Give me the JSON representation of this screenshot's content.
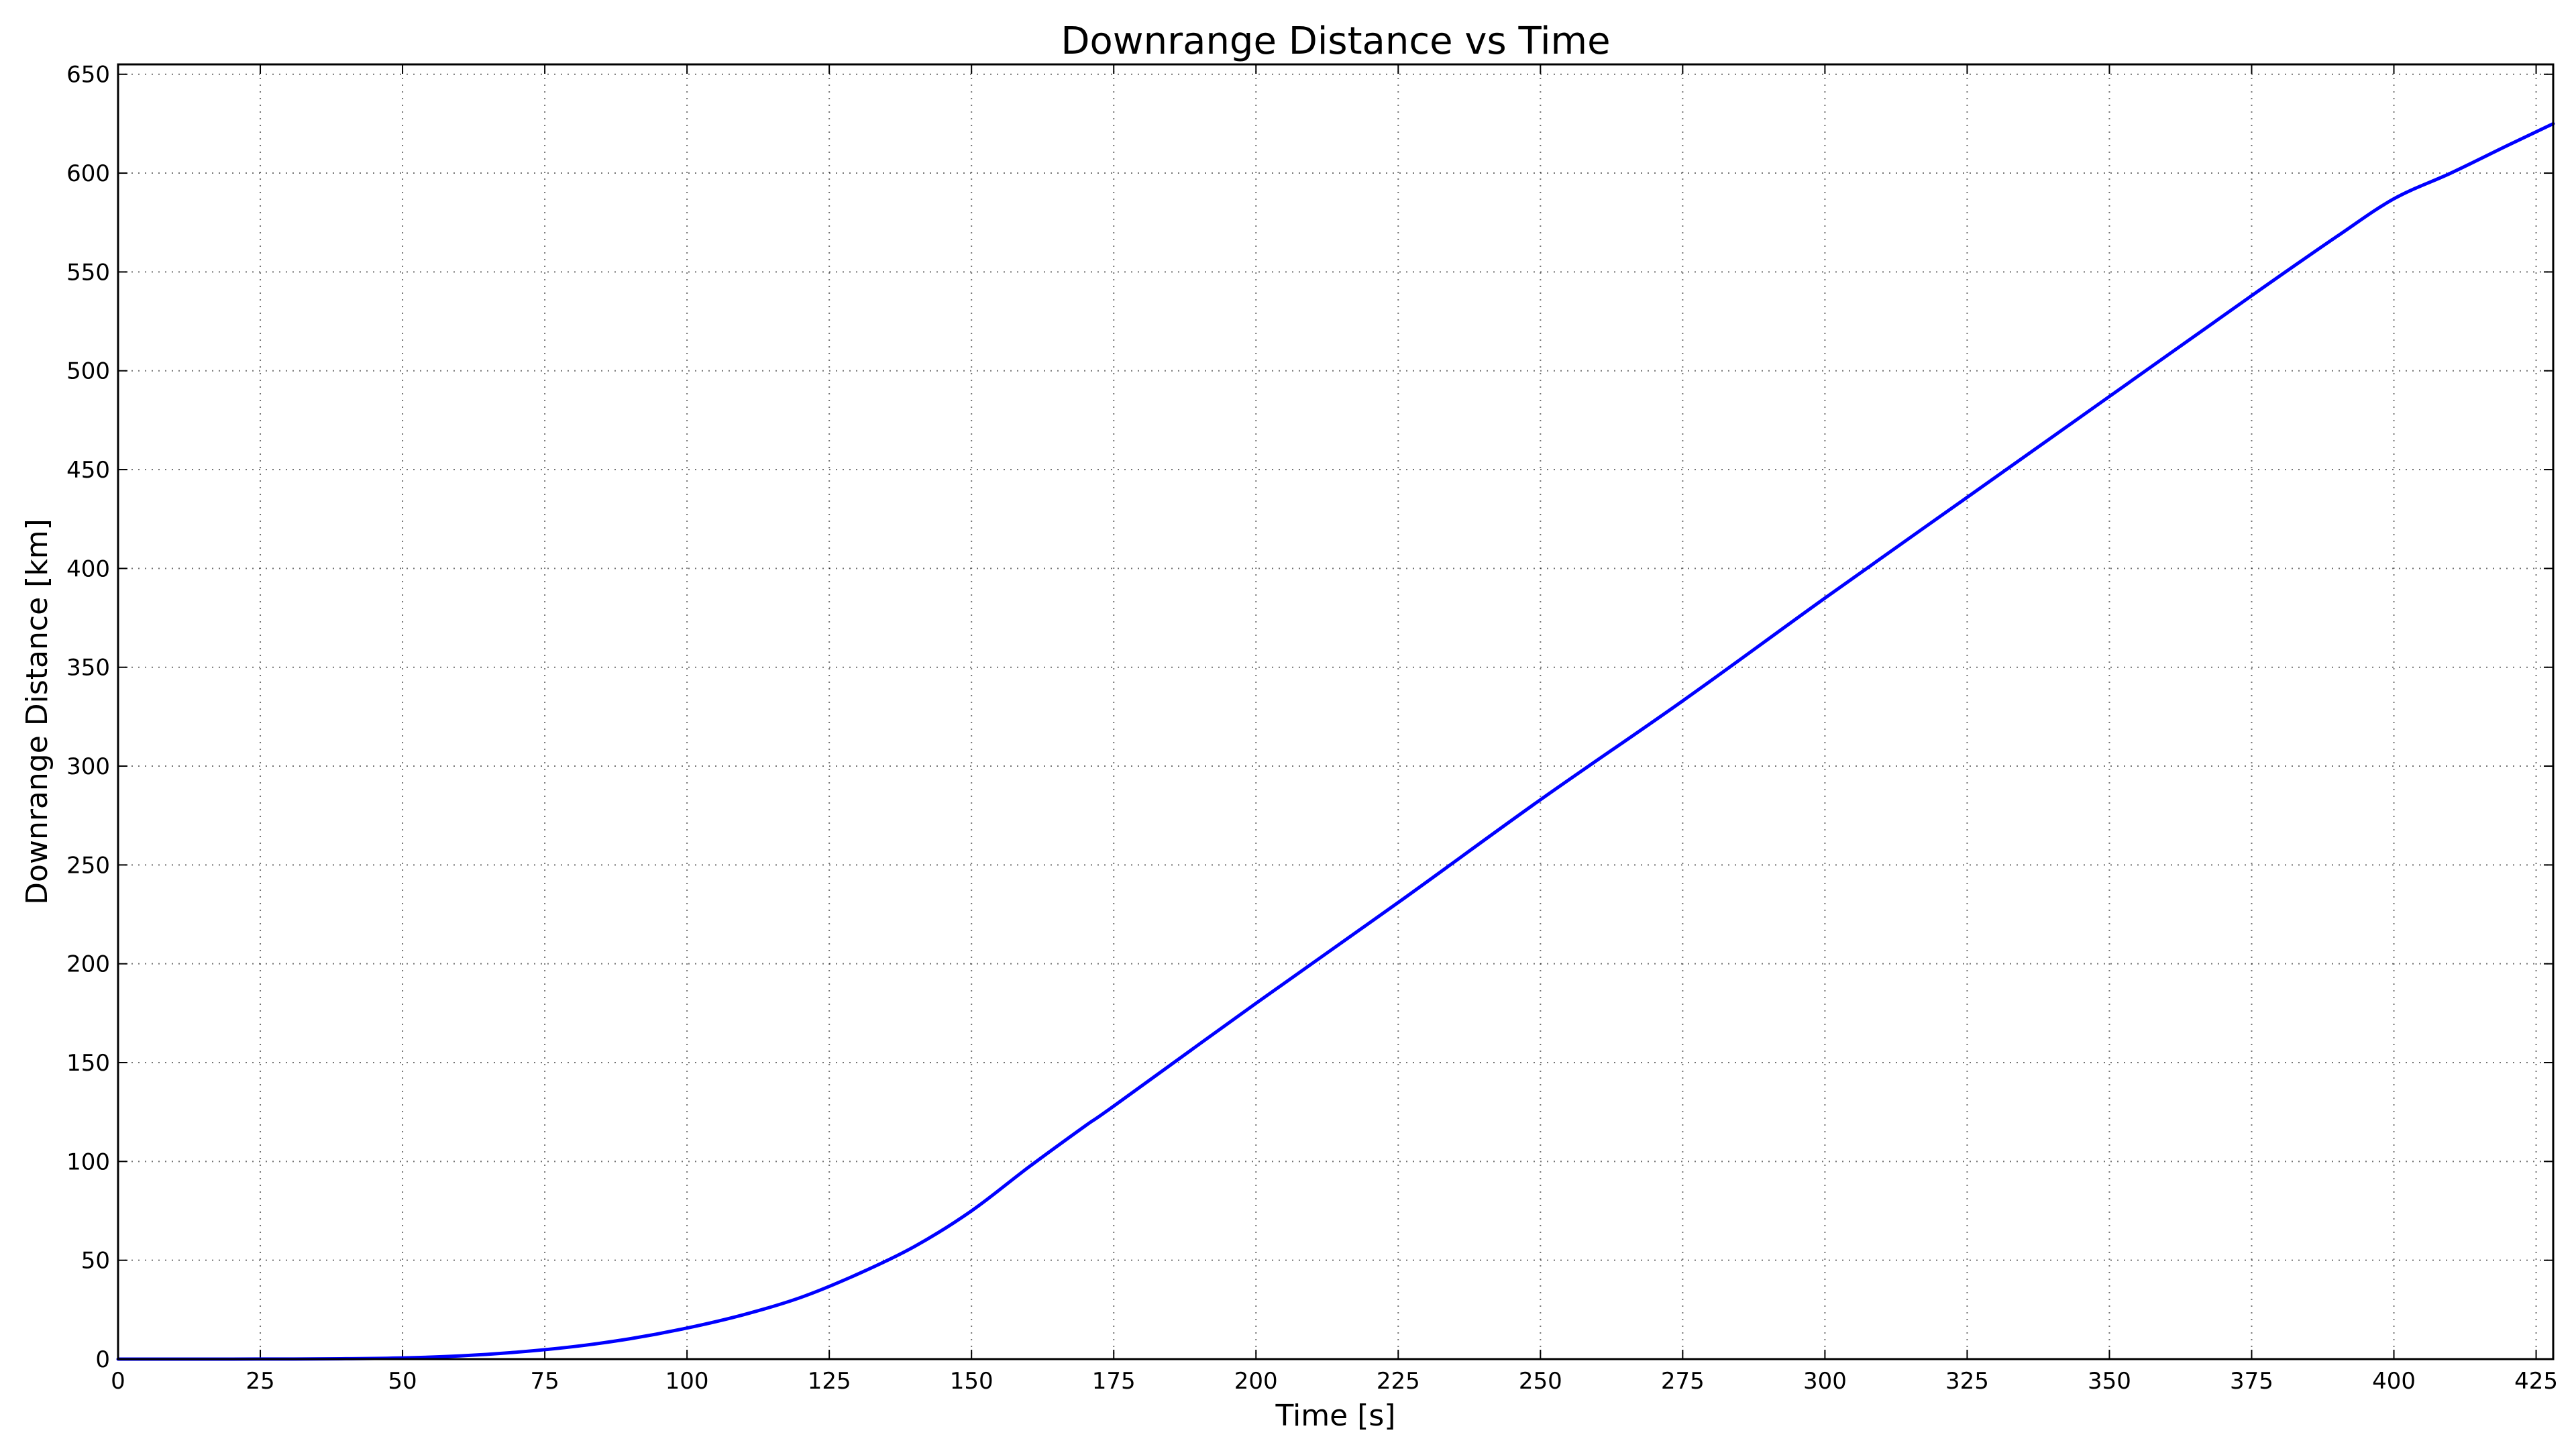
{
  "chart_data": {
    "type": "line",
    "title": "Downrange Distance vs Time",
    "xlabel": "Time [s]",
    "ylabel": "Downrange Distance [km]",
    "xlim": [
      0,
      428
    ],
    "ylim": [
      0,
      655
    ],
    "xticks": [
      0,
      25,
      50,
      75,
      100,
      125,
      150,
      175,
      200,
      225,
      250,
      275,
      300,
      325,
      350,
      375,
      400,
      425
    ],
    "yticks": [
      0,
      50,
      100,
      150,
      200,
      250,
      300,
      350,
      400,
      450,
      500,
      550,
      600,
      650
    ],
    "grid": true,
    "colors": {
      "line": "#0000ff",
      "frame": "#000000",
      "grid": "#000000",
      "background": "#ffffff"
    },
    "series": [
      {
        "x": [
          0,
          10,
          20,
          30,
          40,
          50,
          60,
          70,
          80,
          90,
          100,
          110,
          120,
          130,
          140,
          150,
          160,
          170,
          175,
          200,
          225,
          250,
          275,
          300,
          325,
          350,
          375,
          390,
          400,
          410,
          420,
          428
        ],
        "y": [
          0,
          0,
          0,
          0.05,
          0.2,
          0.6,
          1.6,
          3.5,
          6.3,
          10.3,
          15.7,
          22.5,
          31.2,
          43,
          57,
          75,
          97,
          118,
          128,
          180,
          231,
          283,
          333,
          385,
          436,
          487,
          538,
          568,
          587,
          600,
          614,
          625
        ]
      }
    ]
  }
}
